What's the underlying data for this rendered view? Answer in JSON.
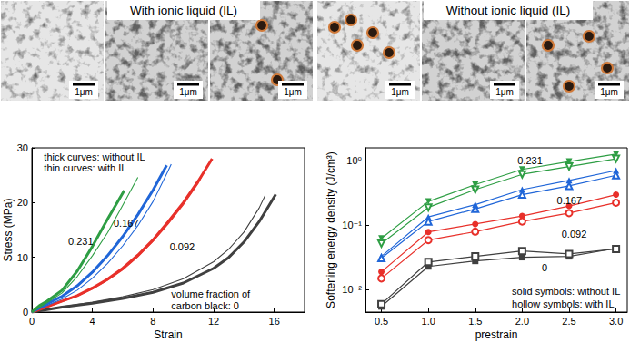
{
  "images": {
    "groups": [
      {
        "caption": "With ionic liquid (IL)",
        "panels": [
          {
            "scale_bar": "1μm"
          },
          {
            "scale_bar": "1μm"
          },
          {
            "scale_bar": "1μm"
          }
        ]
      },
      {
        "caption": "Without ionic liquid (IL)",
        "panels": [
          {
            "scale_bar": "1μm"
          },
          {
            "scale_bar": "1μm"
          },
          {
            "scale_bar": "1μm"
          }
        ]
      }
    ]
  },
  "chart_data": [
    {
      "type": "line",
      "x_label": "Strain",
      "y_label": "Stress (MPa)",
      "xlim": [
        0,
        18
      ],
      "xticks": [
        0,
        4,
        8,
        12,
        16
      ],
      "ylim": [
        0,
        30
      ],
      "yticks": [
        0,
        10,
        20,
        30
      ],
      "grid": false,
      "series": [
        {
          "color": "#404040",
          "line_style": "thin",
          "x": [
            0,
            2,
            4,
            6,
            8,
            10,
            12,
            13,
            14,
            15,
            15.4
          ],
          "values": [
            0,
            1,
            1.8,
            2.8,
            4.1,
            6.1,
            9.2,
            11.5,
            14.6,
            19,
            21.3
          ]
        },
        {
          "color": "#404040",
          "line_style": "thick",
          "x": [
            0,
            2,
            4,
            6,
            8,
            10,
            12,
            13,
            14,
            15,
            16.1
          ],
          "values": [
            0,
            0.9,
            1.6,
            2.5,
            3.6,
            5.3,
            8,
            10,
            12.8,
            16.5,
            21.5
          ]
        },
        {
          "color": "#e8302a",
          "line_style": "thin",
          "x": [
            0,
            1,
            2,
            3,
            4,
            5,
            6,
            7,
            8,
            9,
            10,
            11,
            11.7
          ],
          "values": [
            0,
            0.9,
            1.9,
            2.9,
            4.2,
            5.8,
            7.7,
            10.1,
            12.9,
            16.1,
            19.6,
            23.6,
            27.3
          ]
        },
        {
          "color": "#e8302a",
          "line_style": "thick",
          "x": [
            0,
            1,
            2,
            3,
            4,
            5,
            6,
            7,
            8,
            9,
            10,
            11,
            11.9
          ],
          "values": [
            0,
            1,
            2,
            3,
            4.4,
            6,
            8,
            10.4,
            13.2,
            16.5,
            20,
            24,
            28
          ]
        },
        {
          "color": "#2066d8",
          "line_style": "thin",
          "x": [
            0,
            1,
            2,
            3,
            4,
            5,
            6,
            7,
            8,
            9,
            9.2
          ],
          "values": [
            0,
            1.2,
            2.4,
            4,
            6.2,
            8.9,
            12.1,
            15.8,
            20.2,
            25.8,
            27
          ]
        },
        {
          "color": "#2066d8",
          "line_style": "thick",
          "x": [
            0,
            1,
            2,
            3,
            4,
            5,
            6,
            7,
            8,
            8.9
          ],
          "values": [
            0,
            1.5,
            2.9,
            4.8,
            7.3,
            10.3,
            13.8,
            17.8,
            22.3,
            26.8
          ]
        },
        {
          "color": "#2e9e44",
          "line_style": "thin",
          "x": [
            0,
            1,
            2,
            3,
            4,
            5,
            6,
            7
          ],
          "values": [
            0,
            1.7,
            3.5,
            6.5,
            10.3,
            14.5,
            19.5,
            24.6
          ]
        },
        {
          "color": "#2e9e44",
          "line_style": "thick",
          "x": [
            0,
            0.5,
            1,
            2,
            3,
            4,
            5,
            6.1
          ],
          "values": [
            0,
            1.2,
            2,
            4,
            7.5,
            12,
            17,
            22.2
          ]
        }
      ],
      "annotations": [
        {
          "text": "thick curves: without IL",
          "x": 0.8,
          "y": 28.3
        },
        {
          "text": "thin curves: with IL",
          "x": 0.8,
          "y": 26.3
        },
        {
          "text": "0.231",
          "x": 2.4,
          "y": 13
        },
        {
          "text": "0.167",
          "x": 5.4,
          "y": 16.3
        },
        {
          "text": "0.092",
          "x": 9.1,
          "y": 12
        },
        {
          "text": "volume fraction of\ncarbon black: 0",
          "x": 9.2,
          "y": 2.3
        }
      ]
    },
    {
      "type": "line",
      "x_label": "prestrain",
      "y_label": "Softening energy density (J/cm³)",
      "log": "y",
      "grid": false,
      "x": [
        0.5,
        1,
        1.5,
        2,
        2.5,
        3
      ],
      "xlim": [
        0.33,
        3.12
      ],
      "xticks": [
        0.5,
        {
          "value": 1,
          "label": "1.0"
        },
        1.5,
        {
          "value": 2,
          "label": "2.0"
        },
        2.5,
        {
          "value": 3,
          "label": "3.0"
        }
      ],
      "ylim": [
        0.0045,
        1.6
      ],
      "yticks": [
        {
          "value": 0.01,
          "label": "10⁻²"
        },
        {
          "value": 0.1,
          "label": "10⁻¹"
        },
        {
          "value": 1,
          "label": "10⁰"
        }
      ],
      "series": [
        {
          "color": "#404040",
          "marker": "square",
          "values": [
            0.0055,
            0.023,
            0.028,
            0.032,
            0.033,
            0.044
          ]
        },
        {
          "color": "#404040",
          "marker": "open-square",
          "values": [
            0.006,
            0.027,
            0.033,
            0.04,
            0.036,
            0.043
          ]
        },
        {
          "color": "#e8302a",
          "marker": "circle",
          "values": [
            0.019,
            0.079,
            0.105,
            0.14,
            0.2,
            0.3
          ]
        },
        {
          "color": "#e8302a",
          "marker": "open-circle",
          "values": [
            0.015,
            0.059,
            0.08,
            0.115,
            0.155,
            0.225
          ]
        },
        {
          "color": "#2066d8",
          "marker": "triangle",
          "values": [
            0.033,
            0.135,
            0.21,
            0.36,
            0.5,
            0.71
          ]
        },
        {
          "color": "#2066d8",
          "marker": "open-triangle",
          "values": [
            0.031,
            0.115,
            0.18,
            0.3,
            0.41,
            0.6
          ]
        },
        {
          "color": "#2e9e44",
          "marker": "triangle-down",
          "values": [
            0.063,
            0.235,
            0.43,
            0.74,
            0.98,
            1.28
          ]
        },
        {
          "color": "#2e9e44",
          "marker": "open-triangle-down",
          "values": [
            0.052,
            0.19,
            0.36,
            0.62,
            0.82,
            1.08
          ]
        }
      ],
      "annotations": [
        {
          "text": "0.231",
          "x": 1.95,
          "y": 1.0
        },
        {
          "text": "0.167",
          "x": 2.37,
          "y": 0.245
        },
        {
          "text": "0.092",
          "x": 2.42,
          "y": 0.074
        },
        {
          "text": "0",
          "x": 2.21,
          "y": 0.022
        },
        {
          "text": "solid symbols: without IL",
          "x": 1.89,
          "y": 0.0094
        },
        {
          "text": "hollow symbols: with IL",
          "x": 1.89,
          "y": 0.006
        }
      ]
    }
  ]
}
